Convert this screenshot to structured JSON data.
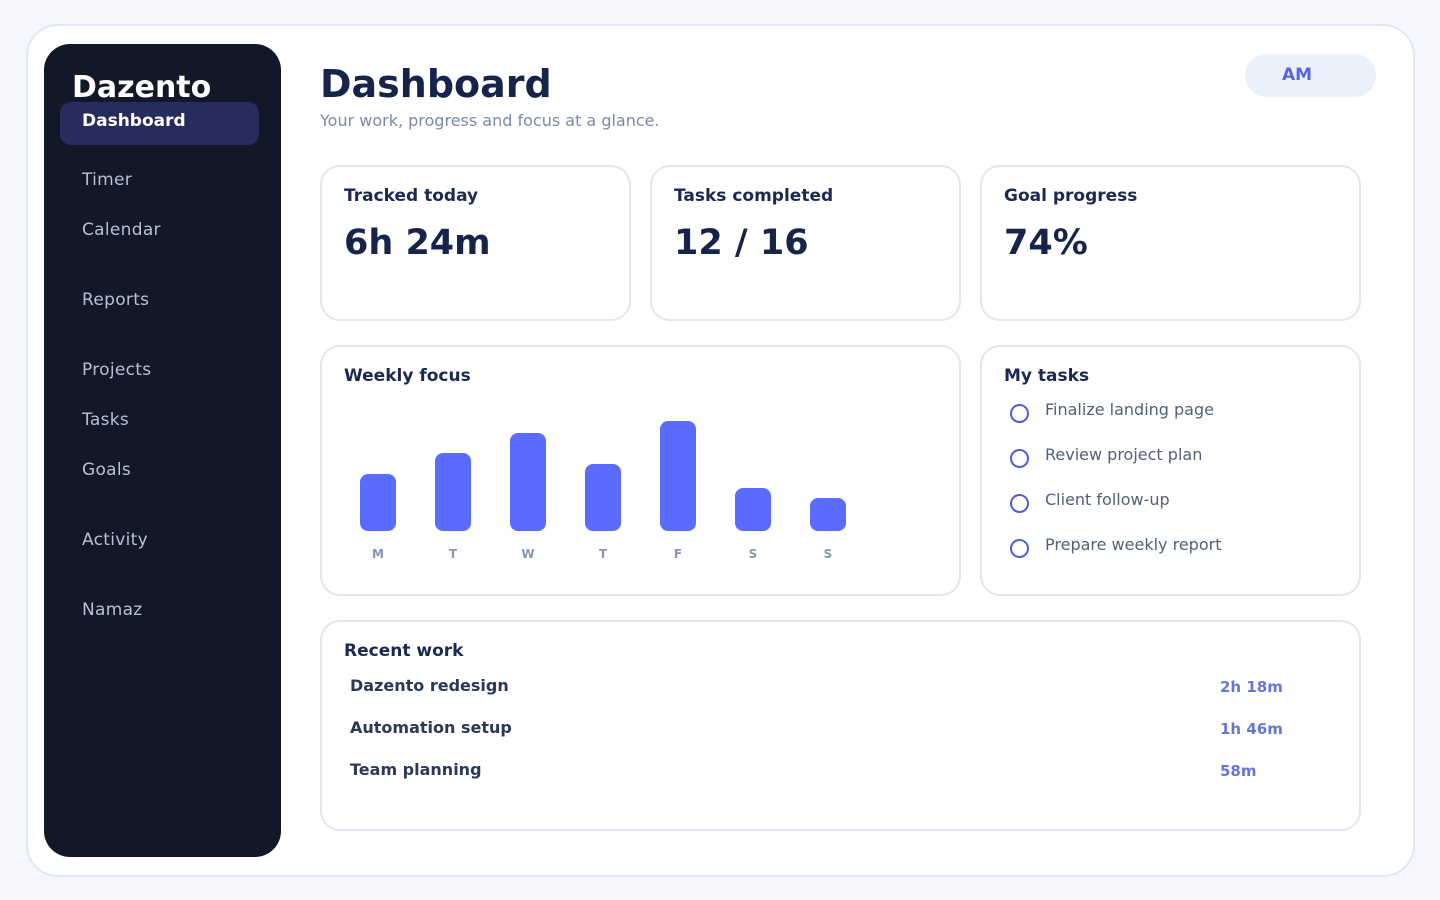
{
  "sidebar": {
    "brand": "Dazento",
    "active": "Dashboard",
    "items": [
      "Timer",
      "Calendar",
      "Reports",
      "Projects",
      "Tasks",
      "Goals",
      "Activity",
      "Namaz"
    ]
  },
  "header": {
    "title": "Dashboard",
    "subtitle": "Your work, progress and focus at a glance.",
    "avatar": "AM"
  },
  "stats": [
    {
      "label": "Tracked today",
      "value": "6h 24m"
    },
    {
      "label": "Tasks completed",
      "value": "12 / 16"
    },
    {
      "label": "Goal progress",
      "value": "74%"
    }
  ],
  "weekly": {
    "title": "Weekly focus",
    "accent": "#5b6bfe"
  },
  "chart_data": {
    "type": "bar",
    "title": "Weekly focus",
    "categories": [
      "M",
      "T",
      "W",
      "T",
      "F",
      "S",
      "S"
    ],
    "values": [
      57,
      78,
      98,
      67,
      110,
      43,
      33
    ]
  },
  "tasks": {
    "title": "My tasks",
    "items": [
      "Finalize landing page",
      "Review project plan",
      "Client follow-up",
      "Prepare weekly report"
    ]
  },
  "recent": {
    "title": "Recent work",
    "rows": [
      {
        "name": "Dazento redesign",
        "duration": "2h 18m"
      },
      {
        "name": "Automation setup",
        "duration": "1h 46m"
      },
      {
        "name": "Team planning",
        "duration": "58m"
      }
    ]
  }
}
